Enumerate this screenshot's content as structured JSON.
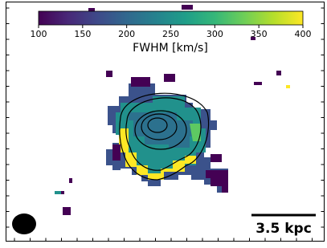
{
  "chart_data": {
    "type": "heatmap",
    "colormap": "viridis",
    "colorbar": {
      "label": "FWHM [km/s]",
      "lim": [
        100,
        400
      ],
      "ticks": [
        100,
        150,
        200,
        250,
        300,
        350,
        400
      ]
    },
    "scale_bar": "3.5 kpc"
  }
}
